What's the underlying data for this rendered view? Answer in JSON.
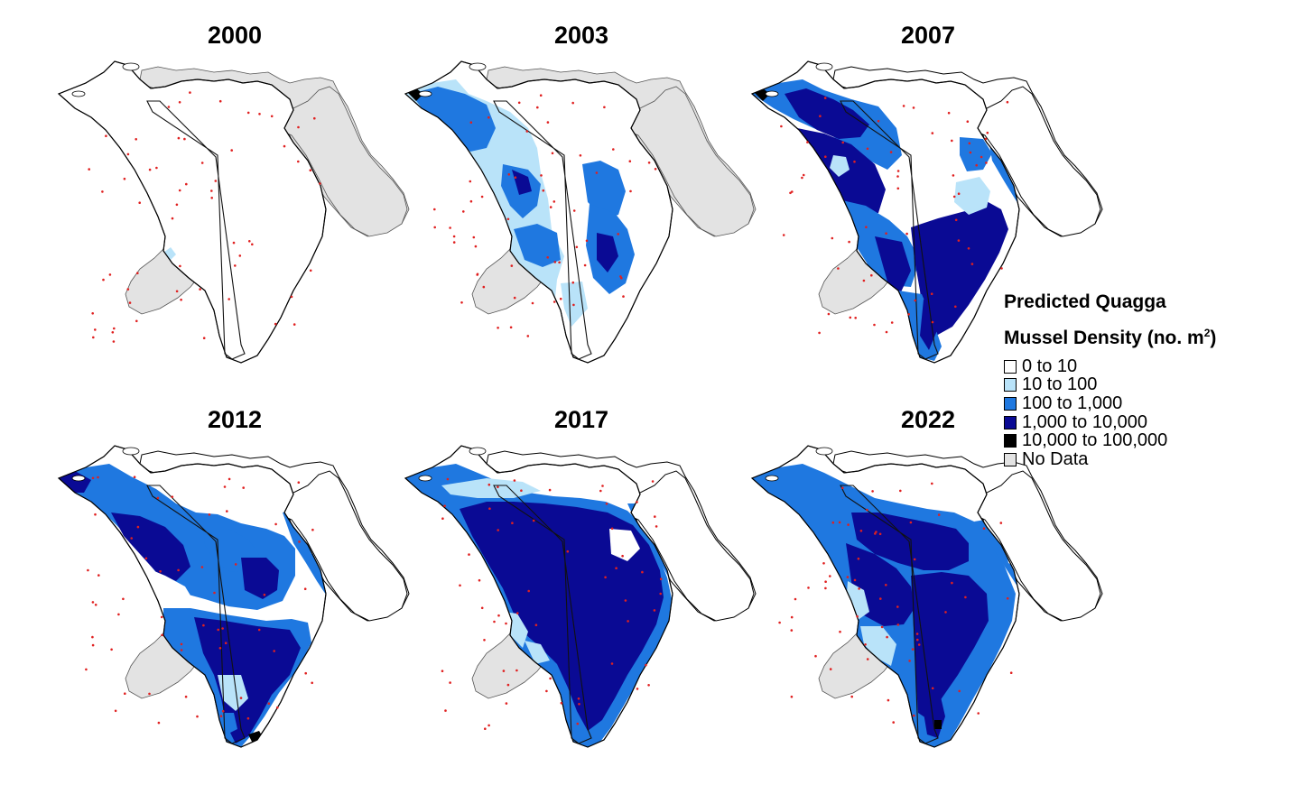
{
  "panels": [
    {
      "year": "2000",
      "col": 0,
      "row": 0,
      "level": 0
    },
    {
      "year": "2003",
      "col": 1,
      "row": 0,
      "level": 1
    },
    {
      "year": "2007",
      "col": 2,
      "row": 0,
      "level": 2
    },
    {
      "year": "2012",
      "col": 0,
      "row": 1,
      "level": 3
    },
    {
      "year": "2017",
      "col": 1,
      "row": 1,
      "level": 5
    },
    {
      "year": "2022",
      "col": 2,
      "row": 1,
      "level": 4
    }
  ],
  "legend": {
    "title_line1": "Predicted Quagga",
    "title_line2_prefix": "Mussel Density (no. m",
    "title_line2_sup": "2",
    "title_line2_suffix": ")",
    "items": [
      {
        "label": "0 to 10",
        "color": "#ffffff"
      },
      {
        "label": "10 to 100",
        "color": "#b9e3f9"
      },
      {
        "label": "100 to 1,000",
        "color": "#1f78e0"
      },
      {
        "label": "1,000 to 10,000",
        "color": "#0a0a94"
      },
      {
        "label": "10,000 to 100,000",
        "color": "#000000"
      },
      {
        "label": "No Data",
        "color": "#e3e3e3"
      }
    ]
  }
}
